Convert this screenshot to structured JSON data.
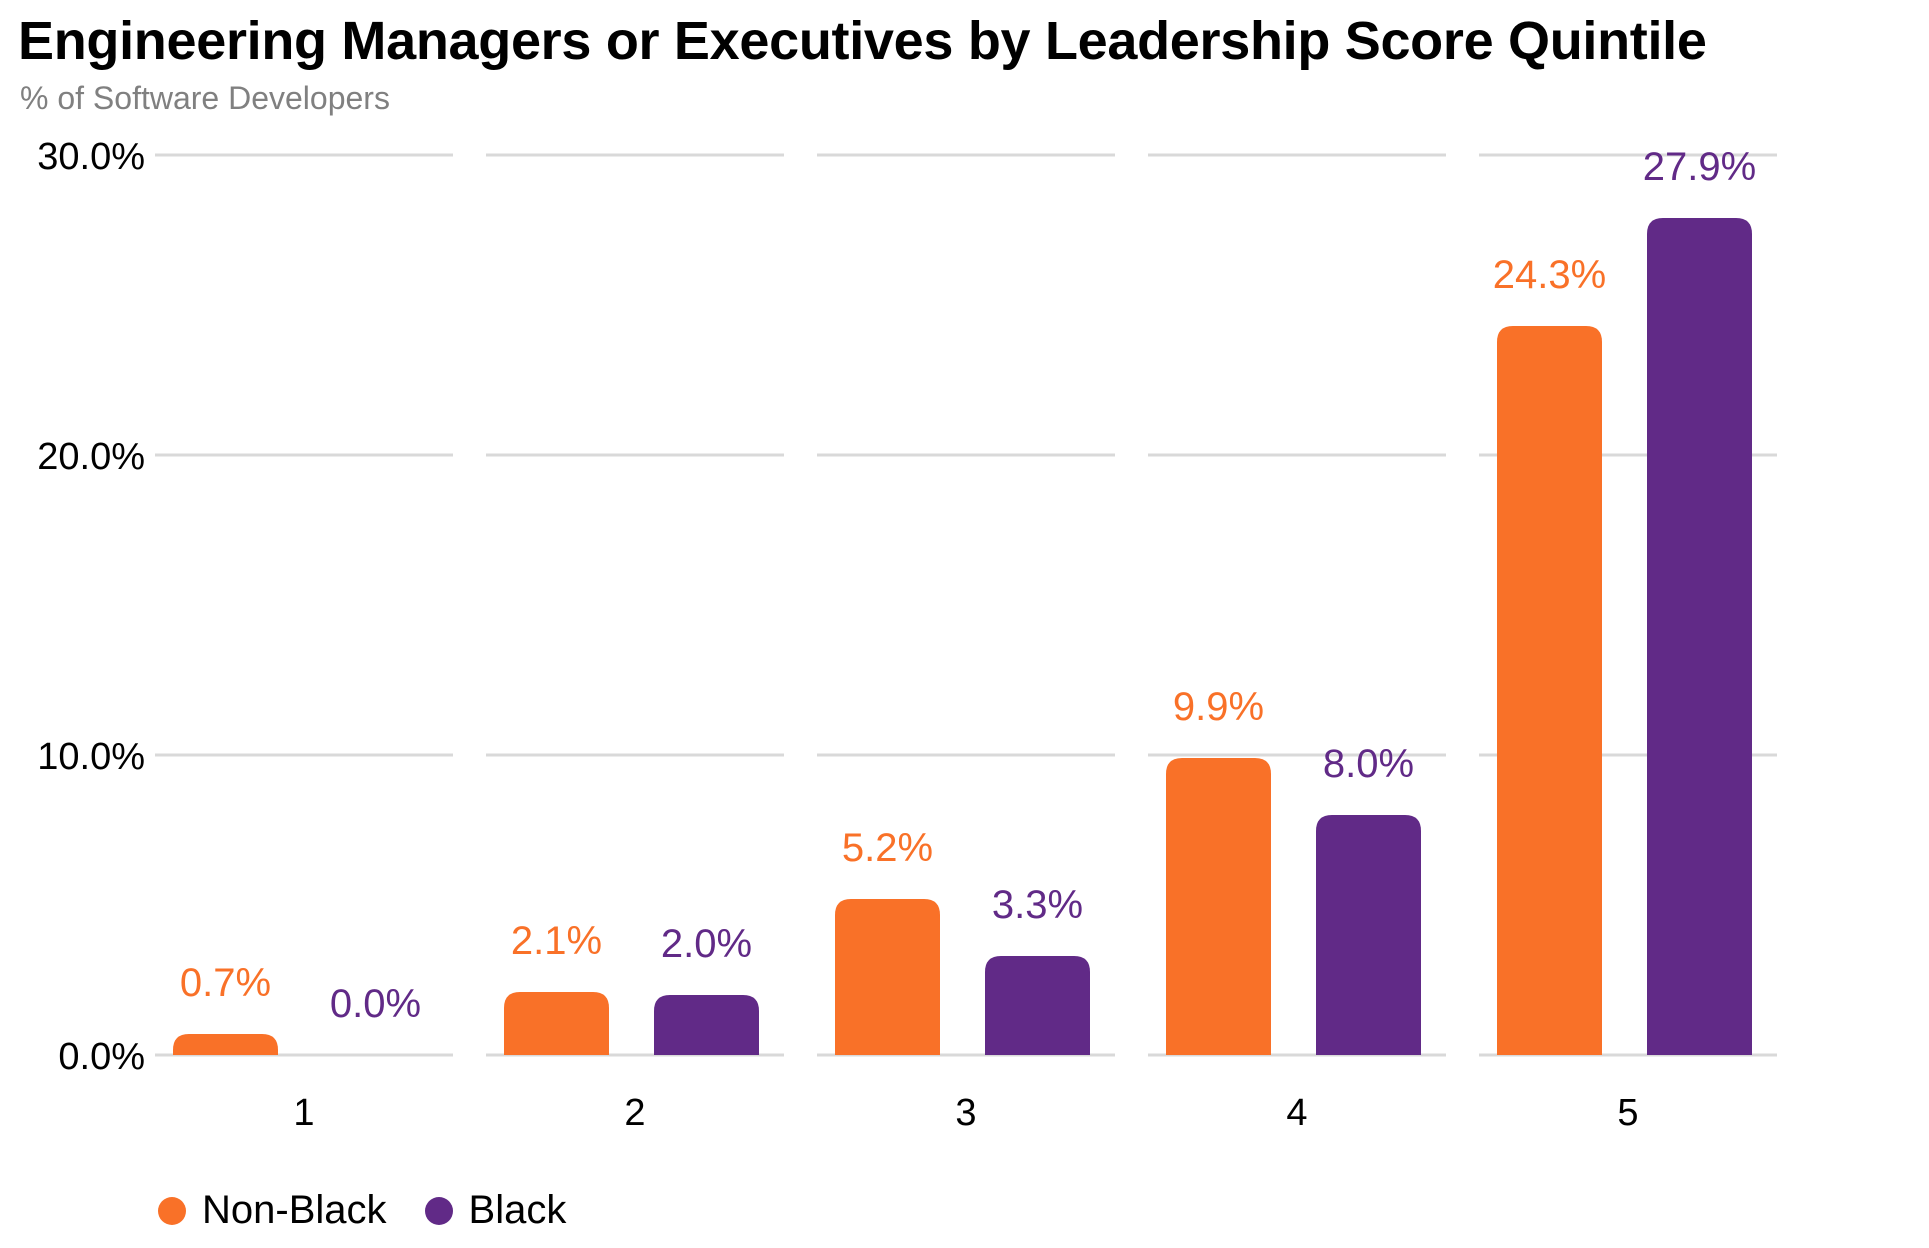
{
  "chart_data": {
    "type": "bar",
    "title": "Engineering Managers or Executives by Leadership Score Quintile",
    "subtitle": "% of Software Developers",
    "categories": [
      "1",
      "2",
      "3",
      "4",
      "5"
    ],
    "series": [
      {
        "name": "Non-Black",
        "color": "#f97128",
        "values": [
          0.7,
          2.1,
          5.2,
          9.9,
          24.3
        ],
        "labels": [
          "0.7%",
          "2.1%",
          "5.2%",
          "9.9%",
          "24.3%"
        ]
      },
      {
        "name": "Black",
        "color": "#612a87",
        "values": [
          0.0,
          2.0,
          3.3,
          8.0,
          27.9
        ],
        "labels": [
          "0.0%",
          "2.0%",
          "3.3%",
          "8.0%",
          "27.9%"
        ]
      }
    ],
    "yticks": [
      0,
      10,
      20,
      30
    ],
    "ytick_labels": [
      "0.0%",
      "10.0%",
      "20.0%",
      "30.0%"
    ],
    "ylim": [
      0,
      30
    ],
    "grid": true,
    "legend_position": "bottom-left",
    "gridline_color": "#d9d9d9"
  }
}
